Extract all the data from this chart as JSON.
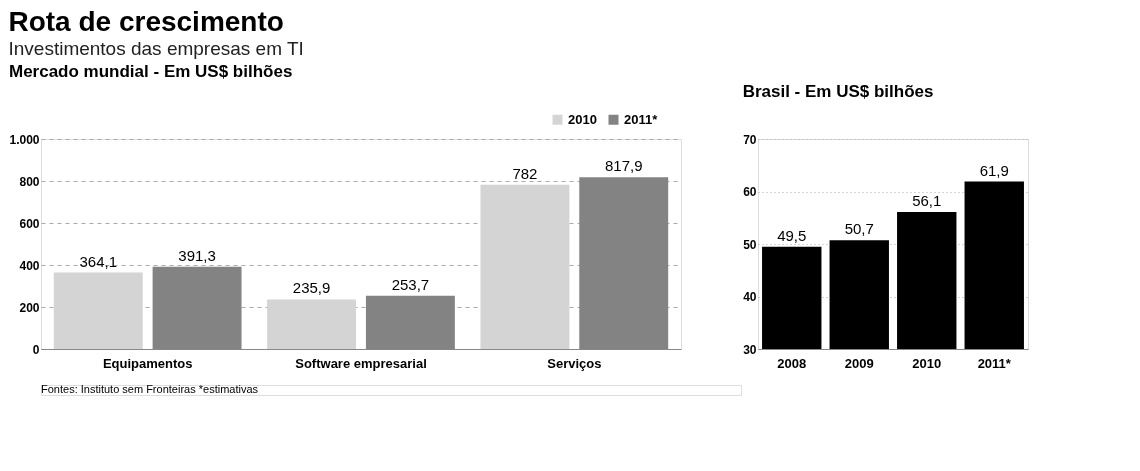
{
  "chart_data": [
    {
      "type": "other",
      "title": "Rota de crescimento",
      "subtitle": "Investimentos das empresas em TI",
      "annotations": [
        "Fontes: Instituto sem Fronteiras *estimativas"
      ]
    },
    {
      "type": "bar",
      "title": "Mercado mundial - Em US$ bilhões",
      "categories": [
        "Equipamentos",
        "Software empresarial",
        "Serviços"
      ],
      "series": [
        {
          "name": "2010",
          "color": "#d4d4d4",
          "values": [
            364.1,
            235.9,
            782
          ],
          "value_labels": [
            "364,1",
            "235,9",
            "782"
          ]
        },
        {
          "name": "2011*",
          "color": "#838383",
          "values": [
            391.3,
            253.7,
            817.9
          ],
          "value_labels": [
            "391,3",
            "253,7",
            "817,9"
          ]
        }
      ],
      "ylim": [
        0,
        1000
      ],
      "yticks": [
        0,
        200,
        400,
        600,
        800,
        {
          "value": 1000,
          "label": "1.000"
        }
      ],
      "grid": "y",
      "line_style": "dashed",
      "legend": "top right"
    },
    {
      "type": "bar",
      "title": "Brasil - Em US$ bilhões",
      "categories": [
        "2008",
        "2009",
        "2010",
        "2011*"
      ],
      "values": [
        49.5,
        50.7,
        56.1,
        61.9
      ],
      "value_labels": [
        "49,5",
        "50,7",
        "56,1",
        "61,9"
      ],
      "color": "#000000",
      "ylim": [
        30,
        70
      ],
      "yticks": [
        30,
        40,
        50,
        60,
        70
      ],
      "grid": "y",
      "line_style": "dotted"
    }
  ]
}
